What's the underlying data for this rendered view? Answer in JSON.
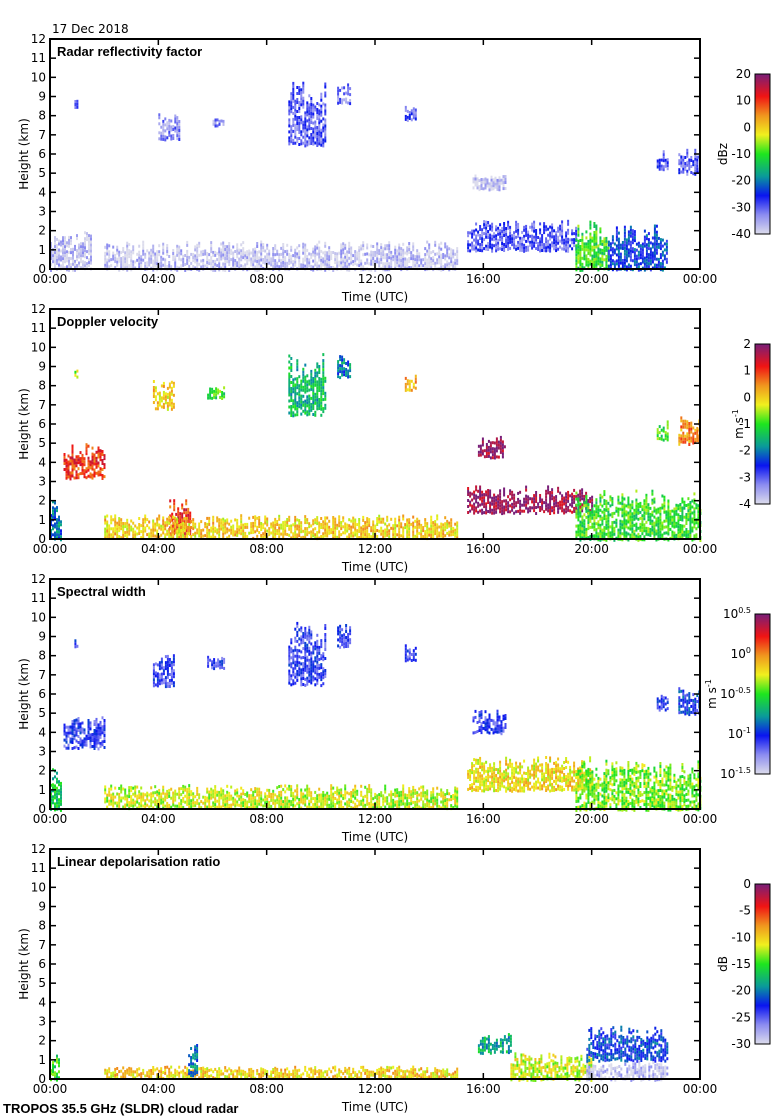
{
  "date_label": "17 Dec 2018",
  "footer_title": "TROPOS 35.5 GHz (SLDR) cloud radar",
  "chart_data": [
    {
      "type": "heatmap",
      "title": "Radar reflectivity factor",
      "xlabel": "Time (UTC)",
      "ylabel": "Height (km)",
      "xlim": [
        "00:00",
        "24:00"
      ],
      "xticks": [
        "00:00",
        "04:00",
        "08:00",
        "12:00",
        "16:00",
        "20:00",
        "00:00"
      ],
      "ylim": [
        0,
        12
      ],
      "yticks": [
        "0",
        "1",
        "2",
        "3",
        "4",
        "5",
        "6",
        "7",
        "8",
        "9",
        "10",
        "11",
        "12"
      ],
      "colorbar": {
        "label": "dBz",
        "range": [
          -40,
          20
        ],
        "ticks": [
          "20",
          "10",
          "0",
          "-10",
          "-20",
          "-30",
          "-40"
        ]
      },
      "features": [
        {
          "t": [
            0.0,
            1.5
          ],
          "h": [
            0.0,
            2.0
          ],
          "value": -38
        },
        {
          "t": [
            0.9,
            1.0
          ],
          "h": [
            8.5,
            8.9
          ],
          "value": -32
        },
        {
          "t": [
            4.0,
            4.8
          ],
          "h": [
            6.8,
            8.2
          ],
          "value": -33
        },
        {
          "t": [
            6.0,
            6.4
          ],
          "h": [
            7.5,
            8.0
          ],
          "value": -33
        },
        {
          "t": [
            8.8,
            10.2
          ],
          "h": [
            6.5,
            9.8
          ],
          "value": -30
        },
        {
          "t": [
            10.6,
            11.1
          ],
          "h": [
            8.7,
            9.7
          ],
          "value": -32
        },
        {
          "t": [
            13.1,
            13.5
          ],
          "h": [
            7.8,
            8.6
          ],
          "value": -30
        },
        {
          "t": [
            15.6,
            16.8
          ],
          "h": [
            4.2,
            5.0
          ],
          "value": -38
        },
        {
          "t": [
            15.4,
            19.4
          ],
          "h": [
            1.0,
            2.6
          ],
          "value": -30
        },
        {
          "t": [
            19.4,
            20.6
          ],
          "h": [
            0.0,
            2.6
          ],
          "value": -10
        },
        {
          "t": [
            20.6,
            22.8
          ],
          "h": [
            0.0,
            2.4
          ],
          "value": -24
        },
        {
          "t": [
            22.4,
            22.8
          ],
          "h": [
            5.2,
            6.2
          ],
          "value": -30
        },
        {
          "t": [
            23.2,
            24.0
          ],
          "h": [
            5.0,
            6.3
          ],
          "value": -30
        },
        {
          "t": [
            2.0,
            15.0
          ],
          "h": [
            0.0,
            1.5
          ],
          "value": -38
        }
      ]
    },
    {
      "type": "heatmap",
      "title": "Doppler velocity",
      "xlabel": "Time (UTC)",
      "ylabel": "Height (km)",
      "xlim": [
        "00:00",
        "24:00"
      ],
      "xticks": [
        "00:00",
        "04:00",
        "08:00",
        "12:00",
        "16:00",
        "20:00",
        "00:00"
      ],
      "ylim": [
        0,
        12
      ],
      "yticks": [
        "0",
        "1",
        "2",
        "3",
        "4",
        "5",
        "6",
        "7",
        "8",
        "9",
        "10",
        "11",
        "12"
      ],
      "colorbar": {
        "label": "m s",
        "label_exponent": "-1",
        "range": [
          -4,
          2
        ],
        "ticks": [
          "2",
          "1",
          "0",
          "-1",
          "-2",
          "-3",
          "-4"
        ]
      },
      "features": [
        {
          "t": [
            0.0,
            0.4
          ],
          "h": [
            0.0,
            2.2
          ],
          "value": -2
        },
        {
          "t": [
            0.5,
            2.0
          ],
          "h": [
            3.2,
            5.0
          ],
          "value": 1
        },
        {
          "t": [
            0.9,
            1.0
          ],
          "h": [
            8.5,
            8.9
          ],
          "value": -0.5
        },
        {
          "t": [
            3.8,
            4.6
          ],
          "h": [
            6.8,
            8.3
          ],
          "value": 0
        },
        {
          "t": [
            5.8,
            6.4
          ],
          "h": [
            7.4,
            8.0
          ],
          "value": -1
        },
        {
          "t": [
            8.8,
            10.2
          ],
          "h": [
            6.5,
            9.8
          ],
          "value": -1.5
        },
        {
          "t": [
            10.6,
            11.1
          ],
          "h": [
            8.5,
            9.7
          ],
          "value": -2
        },
        {
          "t": [
            13.1,
            13.5
          ],
          "h": [
            7.8,
            8.6
          ],
          "value": 0.2
        },
        {
          "t": [
            15.8,
            16.8
          ],
          "h": [
            4.3,
            5.4
          ],
          "value": 1.8
        },
        {
          "t": [
            15.4,
            20.0
          ],
          "h": [
            1.4,
            2.8
          ],
          "value": 1.8
        },
        {
          "t": [
            19.4,
            24.0
          ],
          "h": [
            0.0,
            2.6
          ],
          "value": -1
        },
        {
          "t": [
            4.4,
            5.2
          ],
          "h": [
            0.3,
            2.1
          ],
          "value": 1
        },
        {
          "t": [
            2.0,
            15.0
          ],
          "h": [
            0.1,
            1.3
          ],
          "value": 0
        },
        {
          "t": [
            22.4,
            22.8
          ],
          "h": [
            5.2,
            6.2
          ],
          "value": -1
        },
        {
          "t": [
            23.2,
            24.0
          ],
          "h": [
            5.0,
            6.4
          ],
          "value": 0.5
        }
      ]
    },
    {
      "type": "heatmap",
      "title": "Spectral width",
      "xlabel": "Time (UTC)",
      "ylabel": "Height (km)",
      "xlim": [
        "00:00",
        "24:00"
      ],
      "xticks": [
        "00:00",
        "04:00",
        "08:00",
        "12:00",
        "16:00",
        "20:00",
        "00:00"
      ],
      "ylim": [
        0,
        12
      ],
      "yticks": [
        "0",
        "1",
        "2",
        "3",
        "4",
        "5",
        "6",
        "7",
        "8",
        "9",
        "10",
        "11",
        "12"
      ],
      "colorbar": {
        "label": "m s",
        "label_exponent": "-1",
        "scale": "log10",
        "range": [
          -1.5,
          0.5
        ],
        "ticks": [
          {
            "base": "10",
            "exp": "0.5"
          },
          {
            "base": "10",
            "exp": "0"
          },
          {
            "base": "10",
            "exp": "-0.5"
          },
          {
            "base": "10",
            "exp": "-1"
          },
          {
            "base": "10",
            "exp": "-1.5"
          }
        ]
      },
      "features": [
        {
          "t": [
            0.0,
            0.4
          ],
          "h": [
            0.0,
            2.2
          ],
          "value": -0.6
        },
        {
          "t": [
            0.5,
            2.0
          ],
          "h": [
            3.2,
            5.0
          ],
          "value": -1.1
        },
        {
          "t": [
            0.9,
            1.0
          ],
          "h": [
            8.5,
            8.9
          ],
          "value": -1.1
        },
        {
          "t": [
            3.8,
            4.6
          ],
          "h": [
            6.4,
            8.3
          ],
          "value": -1.1
        },
        {
          "t": [
            5.8,
            6.4
          ],
          "h": [
            7.4,
            8.0
          ],
          "value": -1.1
        },
        {
          "t": [
            8.8,
            10.2
          ],
          "h": [
            6.5,
            9.8
          ],
          "value": -1.1
        },
        {
          "t": [
            10.6,
            11.1
          ],
          "h": [
            8.5,
            9.7
          ],
          "value": -1.1
        },
        {
          "t": [
            13.1,
            13.5
          ],
          "h": [
            7.8,
            8.6
          ],
          "value": -1.1
        },
        {
          "t": [
            15.6,
            16.8
          ],
          "h": [
            4.0,
            5.2
          ],
          "value": -1.1
        },
        {
          "t": [
            15.4,
            20.0
          ],
          "h": [
            1.0,
            2.8
          ],
          "value": -0.2
        },
        {
          "t": [
            19.4,
            24.0
          ],
          "h": [
            0.0,
            2.6
          ],
          "value": -0.4
        },
        {
          "t": [
            2.0,
            15.0
          ],
          "h": [
            0.1,
            1.3
          ],
          "value": -0.3
        },
        {
          "t": [
            22.4,
            22.8
          ],
          "h": [
            5.2,
            6.2
          ],
          "value": -1.1
        },
        {
          "t": [
            23.2,
            24.0
          ],
          "h": [
            5.0,
            6.4
          ],
          "value": -1.0
        }
      ]
    },
    {
      "type": "heatmap",
      "title": "Linear depolarisation ratio",
      "xlabel": "Time (UTC)",
      "ylabel": "Height (km)",
      "xlim": [
        "00:00",
        "24:00"
      ],
      "xticks": [
        "00:00",
        "04:00",
        "08:00",
        "12:00",
        "16:00",
        "20:00",
        "00:00"
      ],
      "ylim": [
        0,
        12
      ],
      "yticks": [
        "0",
        "1",
        "2",
        "3",
        "4",
        "5",
        "6",
        "7",
        "8",
        "9",
        "10",
        "11",
        "12"
      ],
      "colorbar": {
        "label": "dB",
        "range": [
          -30,
          0
        ],
        "ticks": [
          "0",
          "-5",
          "-10",
          "-15",
          "-20",
          "-25",
          "-30"
        ]
      },
      "features": [
        {
          "t": [
            0.0,
            0.3
          ],
          "h": [
            0.0,
            1.4
          ],
          "value": -15
        },
        {
          "t": [
            2.0,
            15.0
          ],
          "h": [
            0.1,
            0.7
          ],
          "value": -10
        },
        {
          "t": [
            5.1,
            5.4
          ],
          "h": [
            0.2,
            2.0
          ],
          "value": -20
        },
        {
          "t": [
            15.8,
            17.0
          ],
          "h": [
            1.4,
            2.4
          ],
          "value": -18
        },
        {
          "t": [
            17.0,
            20.0
          ],
          "h": [
            0.0,
            1.4
          ],
          "value": -12
        },
        {
          "t": [
            19.8,
            22.8
          ],
          "h": [
            1.0,
            2.8
          ],
          "value": -22
        },
        {
          "t": [
            19.8,
            22.8
          ],
          "h": [
            0.0,
            1.0
          ],
          "value": -29
        }
      ]
    }
  ]
}
